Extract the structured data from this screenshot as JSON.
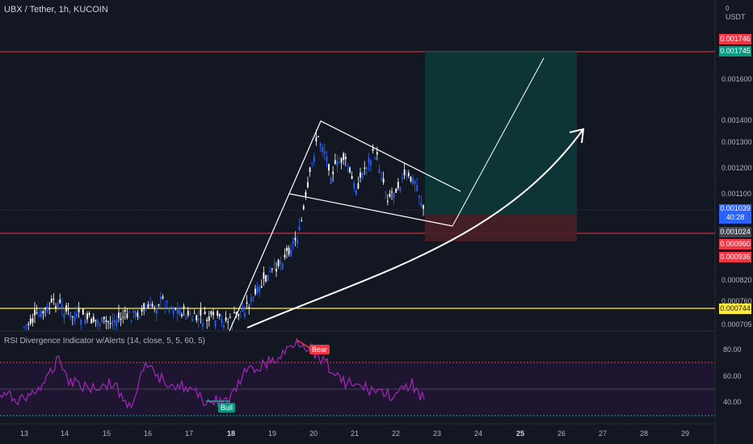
{
  "header": {
    "title": "UBX / Tether, 1h, KUCOIN",
    "currency_line1": "0",
    "currency_line2": "USDT"
  },
  "rsi": {
    "title": "RSI Divergence Indicator w/Alerts (14, close, 5, 5, 60, 5)",
    "bear_label": "Bear",
    "bull_label": "Bull",
    "levels": [
      "80.00",
      "60.00",
      "40.00"
    ]
  },
  "price_axis": {
    "ticks": [
      "0.001600",
      "0.001400",
      "0.001300",
      "0.001200",
      "0.001100",
      "0.000820",
      "0.000760",
      "0.000705"
    ]
  },
  "price_tags": {
    "top_red": "0.001746",
    "top_green": "0.001745",
    "current": "0.001039",
    "countdown": "40:28",
    "gray": "0.001024",
    "red_1": "0.000960",
    "red_2": "0.000936",
    "yellow": "0.000744"
  },
  "time_axis": {
    "labels": [
      "13",
      "14",
      "15",
      "16",
      "17",
      "18",
      "19",
      "20",
      "21",
      "22",
      "23",
      "24",
      "25",
      "26",
      "27",
      "28",
      "29"
    ],
    "bold": [
      "18",
      "25"
    ]
  },
  "colors": {
    "background": "#131722",
    "candle": "#2962ff",
    "candle_alt": "#ffffff",
    "rsi_line": "#9c27b0",
    "red_line": "#f23645",
    "yellow_line": "#ffeb3b",
    "target_zone": "#0d3b3a",
    "stop_zone": "#4a1f26"
  }
}
